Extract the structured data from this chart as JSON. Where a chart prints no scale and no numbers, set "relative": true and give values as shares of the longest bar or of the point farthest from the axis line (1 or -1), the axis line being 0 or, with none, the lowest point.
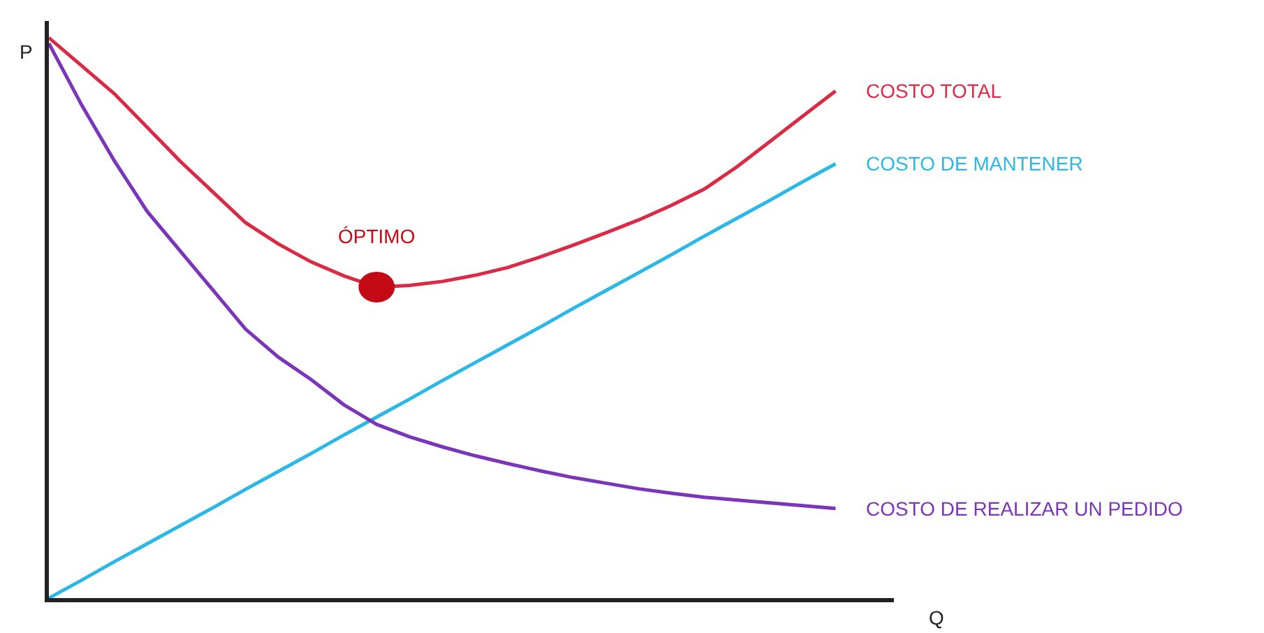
{
  "chart_data": {
    "type": "line",
    "relative": true,
    "xlabel": "Q",
    "ylabel": "P",
    "annotations": [
      "ÓPTIMO"
    ],
    "categories": [
      null,
      null,
      null,
      null,
      null,
      null,
      null,
      null,
      null,
      null,
      null,
      null,
      null,
      null,
      null,
      null,
      null,
      null,
      null,
      null,
      null,
      null,
      null,
      null,
      null
    ],
    "series": [
      {
        "name": "COSTO TOTAL",
        "color": "#d92b45",
        "values": [
          1,
          0.95,
          0.9,
          0.84,
          0.78,
          0.725,
          0.67,
          0.632,
          0.6,
          0.575,
          0.555,
          0.558,
          0.565,
          0.576,
          0.59,
          0.609,
          0.63,
          0.652,
          0.675,
          0.701,
          0.73,
          0.77,
          0.815,
          0.86,
          0.905
        ]
      },
      {
        "name": "COSTO DE MANTENER",
        "color": "#2bb8e6",
        "values": [
          0,
          0.032,
          0.065,
          0.097,
          0.129,
          0.161,
          0.194,
          0.226,
          0.258,
          0.291,
          0.323,
          0.355,
          0.388,
          0.42,
          0.452,
          0.484,
          0.517,
          0.549,
          0.581,
          0.613,
          0.646,
          0.678,
          0.71,
          0.743,
          0.775
        ]
      },
      {
        "name": "COSTO DE REALIZAR UN PEDIDO",
        "color": "#7a35b8",
        "values": [
          0.99,
          0.88,
          0.78,
          0.69,
          0.62,
          0.55,
          0.48,
          0.43,
          0.39,
          0.345,
          0.31,
          0.288,
          0.27,
          0.254,
          0.24,
          0.227,
          0.215,
          0.205,
          0.195,
          0.187,
          0.18,
          0.175,
          0.17,
          0.165,
          0.16
        ]
      }
    ],
    "legend": false,
    "grid": false,
    "marker": "none",
    "line_style": "solid"
  }
}
